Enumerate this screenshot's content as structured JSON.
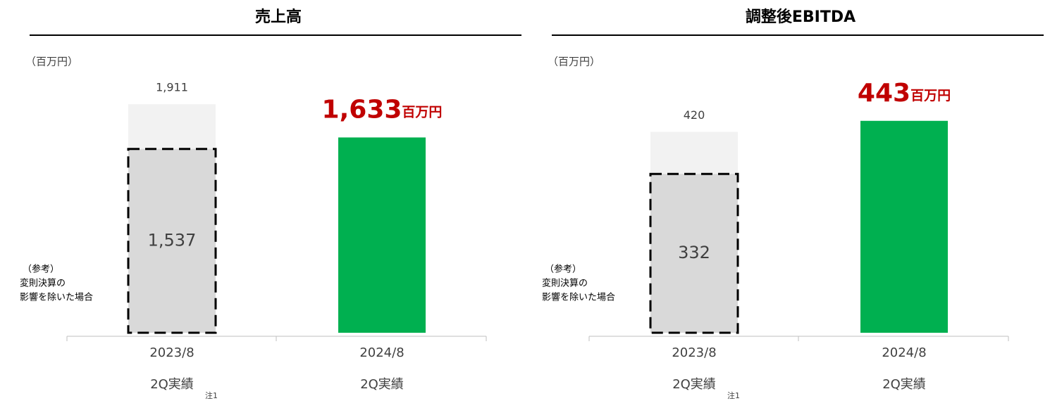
{
  "chart_data": [
    {
      "type": "bar",
      "title": "売上高",
      "unit_label": "（百万円）",
      "categories": [
        "2023/8",
        "2024/8"
      ],
      "category_sublabels": [
        "2Q実績",
        "2Q実績"
      ],
      "category_notes": [
        "注1",
        null
      ],
      "values": [
        1911,
        1633
      ],
      "value_labels": [
        "1,911",
        "1,633"
      ],
      "reference_values": [
        1537,
        null
      ],
      "reference_value_labels": [
        "1,537",
        null
      ],
      "reference_note": [
        "（参考）",
        "変則決算の",
        "影響を除いた場合"
      ],
      "highlight_unit": "百万円",
      "ylim": [
        0,
        2000
      ],
      "color": "#00b050",
      "past_color": "#f2f2f2",
      "reference_color": "#d9d9d9",
      "highlight_label_color": "#c00000"
    },
    {
      "type": "bar",
      "title": "調整後EBITDA",
      "unit_label": "（百万円）",
      "categories": [
        "2023/8",
        "2024/8"
      ],
      "category_sublabels": [
        "2Q実績",
        "2Q実績"
      ],
      "category_notes": [
        "注1",
        null
      ],
      "values": [
        420,
        443
      ],
      "value_labels": [
        "420",
        "443"
      ],
      "reference_values": [
        332,
        null
      ],
      "reference_value_labels": [
        "332",
        null
      ],
      "reference_note": [
        "（参考）",
        "変則決算の",
        "影響を除いた場合"
      ],
      "highlight_unit": "百万円",
      "ylim": [
        0,
        500
      ],
      "color": "#00b050",
      "past_color": "#f2f2f2",
      "reference_color": "#d9d9d9",
      "highlight_label_color": "#c00000"
    }
  ]
}
